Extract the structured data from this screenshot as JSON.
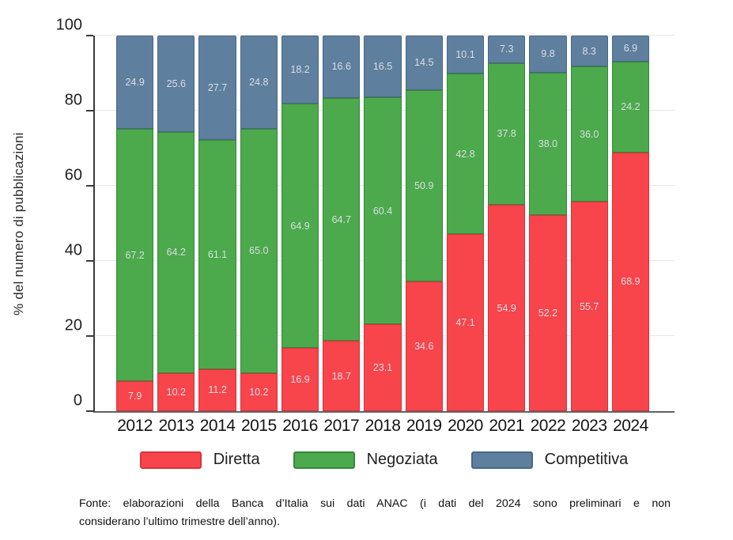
{
  "chart_data": {
    "type": "bar",
    "stacked": true,
    "title": "",
    "xlabel": "",
    "ylabel": "% del numero di pubblicazioni",
    "ylim": [
      0,
      100
    ],
    "yticks": [
      0,
      20,
      40,
      60,
      80,
      100
    ],
    "grid": true,
    "legend_position": "bottom",
    "value_label_decimals": 1,
    "categories": [
      "2012",
      "2013",
      "2014",
      "2015",
      "2016",
      "2017",
      "2018",
      "2019",
      "2020",
      "2021",
      "2022",
      "2023",
      "2024"
    ],
    "series": [
      {
        "name": "Diretta",
        "color": "#f8444b",
        "border_color": "#da3239",
        "values": [
          7.9,
          10.2,
          11.2,
          10.2,
          16.9,
          18.7,
          23.1,
          34.6,
          47.1,
          54.9,
          52.2,
          55.7,
          68.9
        ]
      },
      {
        "name": "Negoziata",
        "color": "#4caa4c",
        "border_color": "#36873a",
        "values": [
          67.2,
          64.2,
          61.1,
          65.0,
          64.9,
          64.7,
          60.4,
          50.9,
          42.8,
          37.8,
          38.0,
          36.0,
          24.2
        ]
      },
      {
        "name": "Competitiva",
        "color": "#5f7f9e",
        "border_color": "#486786",
        "values": [
          24.9,
          25.6,
          27.7,
          24.8,
          18.2,
          16.6,
          16.5,
          14.5,
          10.1,
          7.3,
          9.8,
          8.3,
          6.9
        ]
      }
    ]
  },
  "footer": {
    "line1": "Fonte: elaborazioni della Banca d’Italia sui dati ANAC (i dati del 2024 sono preliminari e non",
    "line2": "considerano l’ultimo trimestre dell’anno)."
  }
}
